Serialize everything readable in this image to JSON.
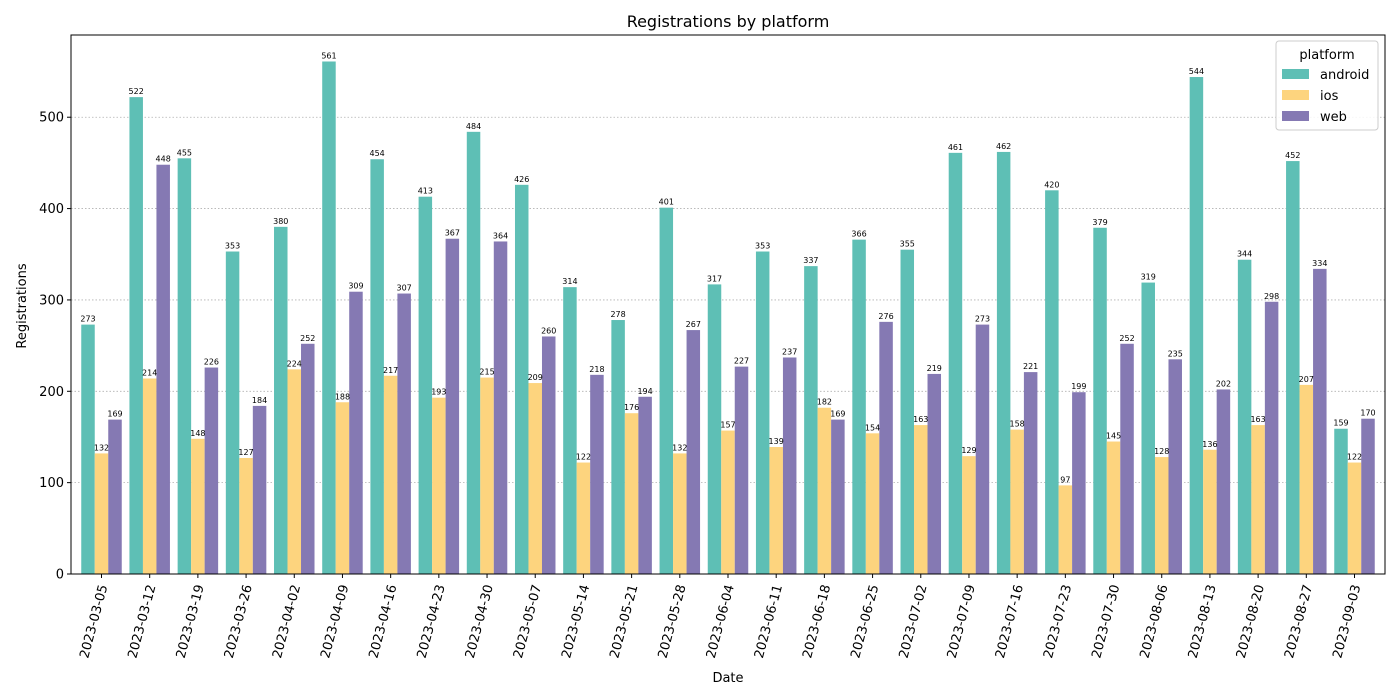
{
  "chart_data": {
    "type": "bar",
    "title": "Registrations by platform",
    "xlabel": "Date",
    "ylabel": "Registrations",
    "ylim": [
      0,
      590
    ],
    "yticks": [
      0,
      100,
      200,
      300,
      400,
      500
    ],
    "grid": "y-dotted",
    "legend": {
      "title": "platform",
      "placement": "top-right"
    },
    "categories": [
      "2023-03-05",
      "2023-03-12",
      "2023-03-19",
      "2023-03-26",
      "2023-04-02",
      "2023-04-09",
      "2023-04-16",
      "2023-04-23",
      "2023-04-30",
      "2023-05-07",
      "2023-05-14",
      "2023-05-21",
      "2023-05-28",
      "2023-06-04",
      "2023-06-11",
      "2023-06-18",
      "2023-06-25",
      "2023-07-02",
      "2023-07-09",
      "2023-07-16",
      "2023-07-23",
      "2023-07-30",
      "2023-08-06",
      "2023-08-13",
      "2023-08-20",
      "2023-08-27",
      "2023-09-03"
    ],
    "series": [
      {
        "name": "android",
        "color": "#5ebfb5",
        "values": [
          273,
          522,
          455,
          353,
          380,
          561,
          454,
          413,
          484,
          426,
          314,
          278,
          401,
          317,
          353,
          337,
          366,
          355,
          461,
          462,
          420,
          379,
          319,
          544,
          344,
          452,
          159
        ]
      },
      {
        "name": "ios",
        "color": "#fdd47e",
        "values": [
          132,
          214,
          148,
          127,
          224,
          188,
          217,
          193,
          215,
          209,
          122,
          176,
          132,
          157,
          139,
          182,
          154,
          163,
          129,
          158,
          97,
          145,
          128,
          136,
          163,
          207,
          122
        ]
      },
      {
        "name": "web",
        "color": "#8579b3",
        "values": [
          169,
          448,
          226,
          184,
          252,
          309,
          307,
          367,
          364,
          260,
          218,
          194,
          267,
          227,
          237,
          169,
          276,
          219,
          273,
          221,
          199,
          252,
          235,
          202,
          298,
          334,
          170
        ]
      }
    ]
  }
}
